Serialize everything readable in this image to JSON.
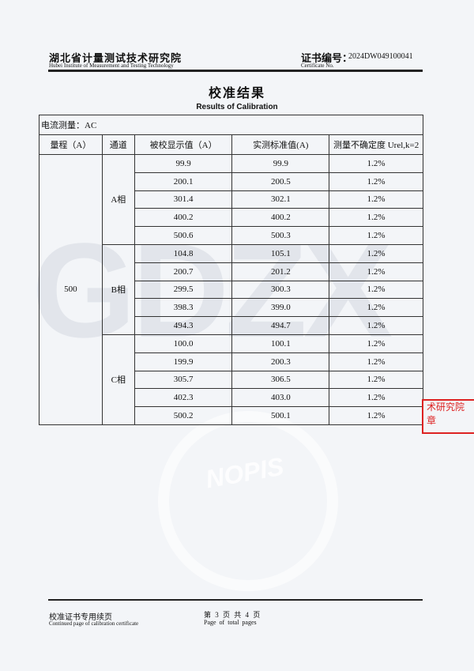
{
  "header": {
    "institute_cn": "湖北省计量测试技术研究院",
    "institute_en": "Hubei Institute of Measurement and Testing Technology",
    "cert_label_cn": "证书编号：",
    "cert_label_en": "Certificate No.",
    "cert_no": "2024DW049100041"
  },
  "title_cn": "校准结果",
  "title_en": "Results of Calibration",
  "section": "电流测量：AC",
  "columns": [
    "量程（A）",
    "通道",
    "被校显示值（A）",
    "实测标准值(A)",
    "测量不确定度 Urel,k=2"
  ],
  "range": "500",
  "groups": [
    {
      "channel": "A相",
      "rows": [
        [
          "99.9",
          "99.9",
          "1.2%"
        ],
        [
          "200.1",
          "200.5",
          "1.2%"
        ],
        [
          "301.4",
          "302.1",
          "1.2%"
        ],
        [
          "400.2",
          "400.2",
          "1.2%"
        ],
        [
          "500.6",
          "500.3",
          "1.2%"
        ]
      ]
    },
    {
      "channel": "B相",
      "rows": [
        [
          "104.8",
          "105.1",
          "1.2%"
        ],
        [
          "200.7",
          "201.2",
          "1.2%"
        ],
        [
          "299.5",
          "300.3",
          "1.2%"
        ],
        [
          "398.3",
          "399.0",
          "1.2%"
        ],
        [
          "494.3",
          "494.7",
          "1.2%"
        ]
      ]
    },
    {
      "channel": "C相",
      "rows": [
        [
          "100.0",
          "100.1",
          "1.2%"
        ],
        [
          "199.9",
          "200.3",
          "1.2%"
        ],
        [
          "305.7",
          "306.5",
          "1.2%"
        ],
        [
          "402.3",
          "403.0",
          "1.2%"
        ],
        [
          "500.2",
          "500.1",
          "1.2%"
        ]
      ]
    }
  ],
  "watermark": {
    "text": "GDZX",
    "logo": "NOPIS"
  },
  "stamp": {
    "line1": "术研究院",
    "line2": "章"
  },
  "footer": {
    "cn": "校准证书专用续页",
    "en": "Continued page of calibration certificate",
    "page_cn": "第 3 页 共 4 页",
    "page_en": "Page of total pages"
  }
}
